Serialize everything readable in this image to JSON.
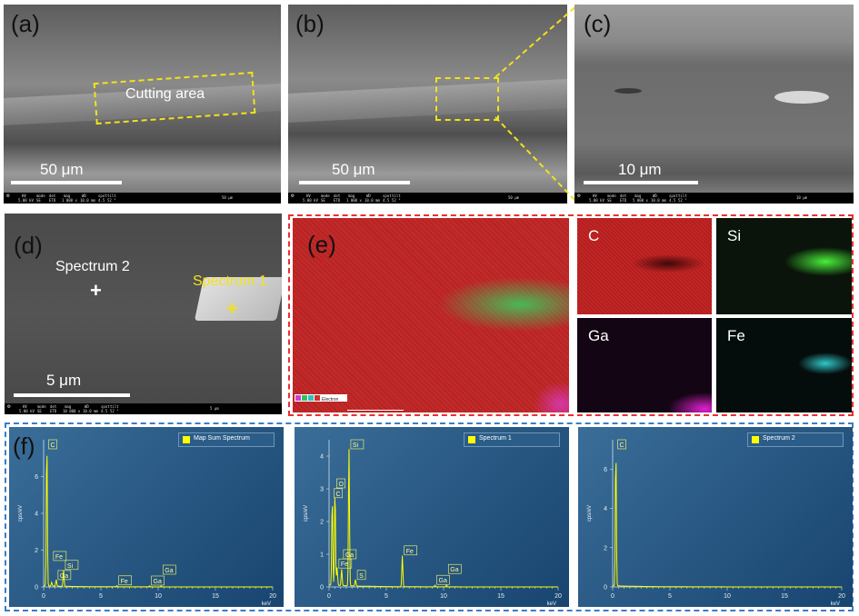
{
  "panels": {
    "a": {
      "label": "(a)",
      "scale": "50 μm",
      "callout": "Cutting area",
      "bar_scale": "50 μm"
    },
    "b": {
      "label": "(b)",
      "scale": "50 μm",
      "bar_scale": "50 μm"
    },
    "c": {
      "label": "(c)",
      "scale": "10 μm",
      "bar_scale": "10 μm"
    },
    "d": {
      "label": "(d)",
      "scale": "5 μm",
      "bar_scale": "5 μm",
      "spectrum1": "Spectrum 1",
      "spectrum2": "Spectrum 2"
    },
    "e": {
      "label": "(e)",
      "maps": [
        "C",
        "Si",
        "Ga",
        "Fe"
      ],
      "legend_text": "Electron"
    },
    "f": {
      "label": "(f)"
    }
  },
  "infobar": {
    "headers": [
      "HV",
      "mode",
      "det",
      "mag",
      "WD",
      "spot",
      "tilt"
    ],
    "a": [
      "5.00 kV",
      "SE",
      "ETD",
      "1 000 x",
      "10.0 mm",
      "4.5",
      "52 °"
    ],
    "b": [
      "5.00 kV",
      "SE",
      "ETD",
      "1 000 x",
      "10.0 mm",
      "4.5",
      "52 °"
    ],
    "c": [
      "5.00 kV",
      "SE",
      "ETD",
      "5 000 x",
      "10.0 mm",
      "4.5",
      "52 °"
    ],
    "d": [
      "5.00 kV",
      "SE",
      "ETD",
      "10 000 x",
      "10.0 mm",
      "4.5",
      "52 °"
    ]
  },
  "colors": {
    "red_dash": "#e83030",
    "blue_dash": "#3a7cc8",
    "yellow": "#f2e21a",
    "spectrum_line": "#ffff00"
  },
  "chart_data": [
    {
      "type": "line",
      "title": "",
      "legend": "Map Sum Spectrum",
      "ylabel": "cps/eV",
      "xlabel": "keV",
      "xlim": [
        0,
        20
      ],
      "ylim": [
        0,
        8
      ],
      "xticks": [
        0,
        5,
        10,
        15,
        20
      ],
      "yticks": [
        0,
        2,
        4,
        6
      ],
      "peaks": [
        {
          "x": 0.28,
          "y": 7.9,
          "label": "C"
        },
        {
          "x": 1.1,
          "y": 0.35,
          "label": "Ga"
        },
        {
          "x": 1.74,
          "y": 0.9,
          "label": "Si"
        },
        {
          "x": 0.7,
          "y": 0.2,
          "label": "Fe"
        },
        {
          "x": 6.4,
          "y": 0.06,
          "label": "Fe"
        },
        {
          "x": 9.25,
          "y": 0.05,
          "label": "Ga"
        },
        {
          "x": 10.26,
          "y": 0.05,
          "label": "Ga"
        }
      ]
    },
    {
      "type": "line",
      "title": "",
      "legend": "Spectrum 1",
      "ylabel": "cps/eV",
      "xlabel": "keV",
      "xlim": [
        0,
        20
      ],
      "ylim": [
        0,
        4.5
      ],
      "xticks": [
        0,
        5,
        10,
        15,
        20
      ],
      "yticks": [
        0,
        1,
        2,
        3,
        4
      ],
      "peaks": [
        {
          "x": 0.28,
          "y": 2.7,
          "label": "C"
        },
        {
          "x": 0.52,
          "y": 3.0,
          "label": "O"
        },
        {
          "x": 0.7,
          "y": 0.55,
          "label": "Fe"
        },
        {
          "x": 1.1,
          "y": 0.5,
          "label": "Ga"
        },
        {
          "x": 1.74,
          "y": 4.3,
          "label": "Si"
        },
        {
          "x": 2.31,
          "y": 0.2,
          "label": "S"
        },
        {
          "x": 6.4,
          "y": 0.95,
          "label": "Fe"
        },
        {
          "x": 9.25,
          "y": 0.05,
          "label": "Ga"
        },
        {
          "x": 10.26,
          "y": 0.05,
          "label": "Ga"
        }
      ]
    },
    {
      "type": "line",
      "title": "",
      "legend": "Spectrum 2",
      "ylabel": "cps/eV",
      "xlabel": "keV",
      "xlim": [
        0,
        20
      ],
      "ylim": [
        0,
        7.5
      ],
      "xticks": [
        0,
        5,
        10,
        15,
        20
      ],
      "yticks": [
        0,
        2,
        4,
        6
      ],
      "peaks": [
        {
          "x": 0.28,
          "y": 7.0,
          "label": "C"
        }
      ]
    }
  ]
}
